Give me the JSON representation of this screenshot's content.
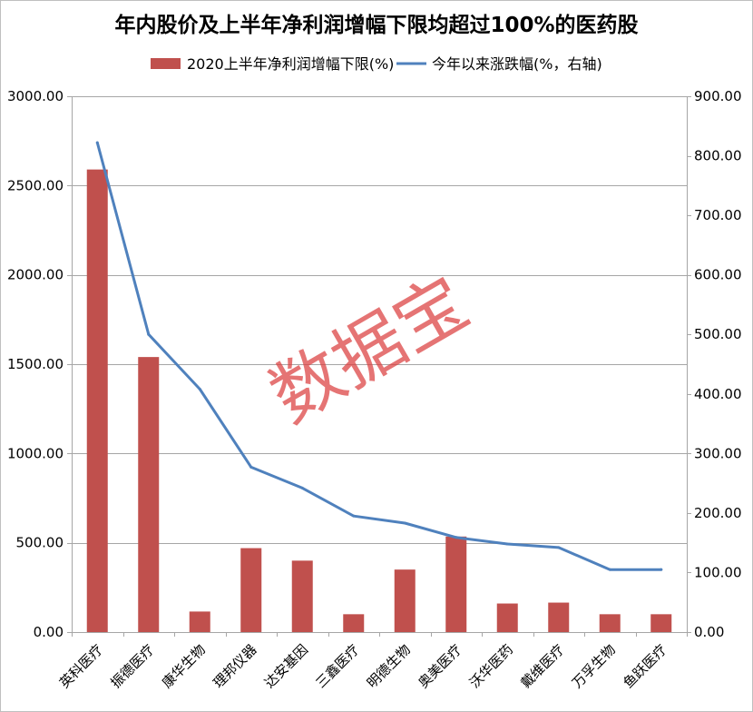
{
  "chart_data": {
    "type": "bar",
    "title": "年内股价及上半年净利润增幅下限均超过100%的医药股",
    "categories": [
      "英科医疗",
      "振德医疗",
      "康华生物",
      "理邦仪器",
      "达安基因",
      "三鑫医疗",
      "明德生物",
      "奥美医疗",
      "沃华医药",
      "戴维医疗",
      "万孚生物",
      "鱼跃医疗"
    ],
    "series": [
      {
        "name": "2020上半年净利润增幅下限(%)",
        "type": "bar",
        "axis": "left",
        "color": "#C0504D",
        "values": [
          2590,
          1540,
          115,
          470,
          400,
          100,
          350,
          535,
          160,
          165,
          100,
          100
        ]
      },
      {
        "name": "今年以来涨跌幅(%，右轴)",
        "type": "line",
        "axis": "right",
        "color": "#4F81BD",
        "values": [
          822,
          500,
          408,
          277,
          242,
          195,
          183,
          159,
          148,
          142,
          105,
          105
        ]
      }
    ],
    "y_left": {
      "ylim": [
        0,
        3000
      ],
      "ticks": [
        "0.00",
        "500.00",
        "1000.00",
        "1500.00",
        "2000.00",
        "2500.00",
        "3000.00"
      ]
    },
    "y_right": {
      "ylim": [
        0,
        900
      ],
      "ticks": [
        "0.00",
        "100.00",
        "200.00",
        "300.00",
        "400.00",
        "500.00",
        "600.00",
        "700.00",
        "800.00",
        "900.00"
      ]
    },
    "legend_position": "top",
    "grid": true
  },
  "watermark": "数据宝",
  "colors": {
    "gridline": "#A6A6A6",
    "text": "#000000",
    "watermark": "#DC3F3F",
    "border": "#BFBFBF"
  }
}
